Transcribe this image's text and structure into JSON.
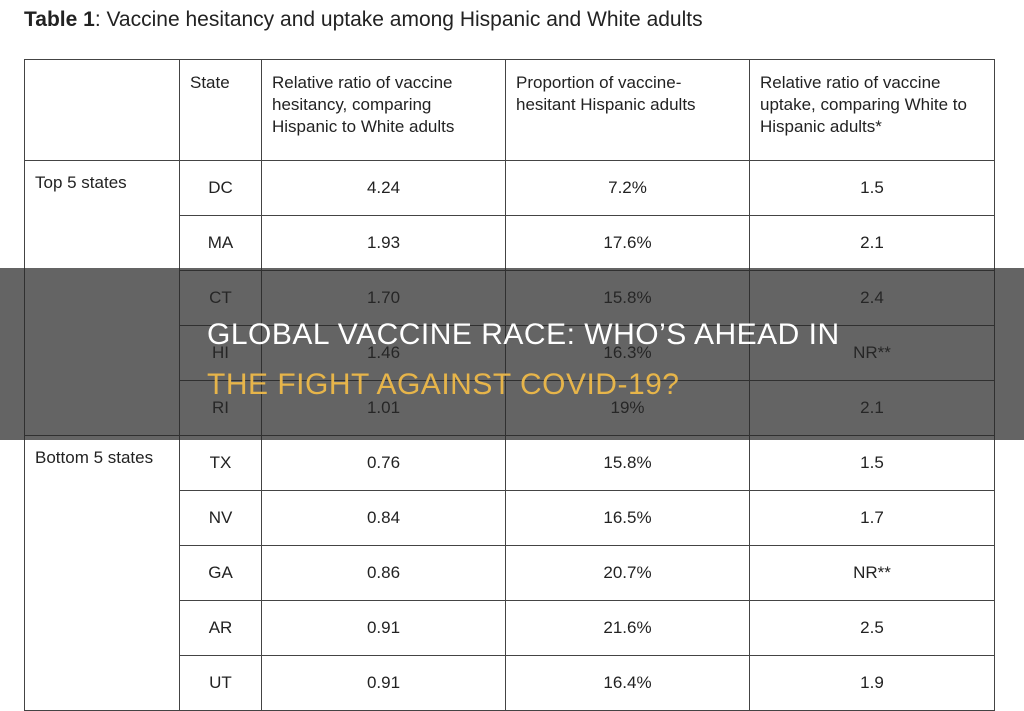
{
  "header": {
    "label": "Table 1",
    "title": ": Vaccine hesitancy and uptake among Hispanic and White adults"
  },
  "table": {
    "columns": [
      "",
      "State",
      "Relative ratio of vaccine hesitancy, comparing Hispanic to White adults",
      "Proportion of vaccine-hesitant Hispanic adults",
      "Relative ratio of vaccine uptake, comparing White to Hispanic adults*"
    ],
    "groups": [
      {
        "label": "Top 5 states",
        "rows": [
          [
            "DC",
            "4.24",
            "7.2%",
            "1.5"
          ],
          [
            "MA",
            "1.93",
            "17.6%",
            "2.1"
          ],
          [
            "CT",
            "1.70",
            "15.8%",
            "2.4"
          ],
          [
            "HI",
            "1.46",
            "16.3%",
            "NR**"
          ],
          [
            "RI",
            "1.01",
            "19%",
            "2.1"
          ]
        ]
      },
      {
        "label": "Bottom 5 states",
        "rows": [
          [
            "TX",
            "0.76",
            "15.8%",
            "1.5"
          ],
          [
            "NV",
            "0.84",
            "16.5%",
            "1.7"
          ],
          [
            "GA",
            "0.86",
            "20.7%",
            "NR**"
          ],
          [
            "AR",
            "0.91",
            "21.6%",
            "2.5"
          ],
          [
            "UT",
            "0.91",
            "16.4%",
            "1.9"
          ]
        ]
      }
    ]
  },
  "banner": {
    "line1": "GLOBAL VACCINE RACE: WHO’S AHEAD IN",
    "line2": "THE FIGHT AGAINST COVID-19?"
  }
}
